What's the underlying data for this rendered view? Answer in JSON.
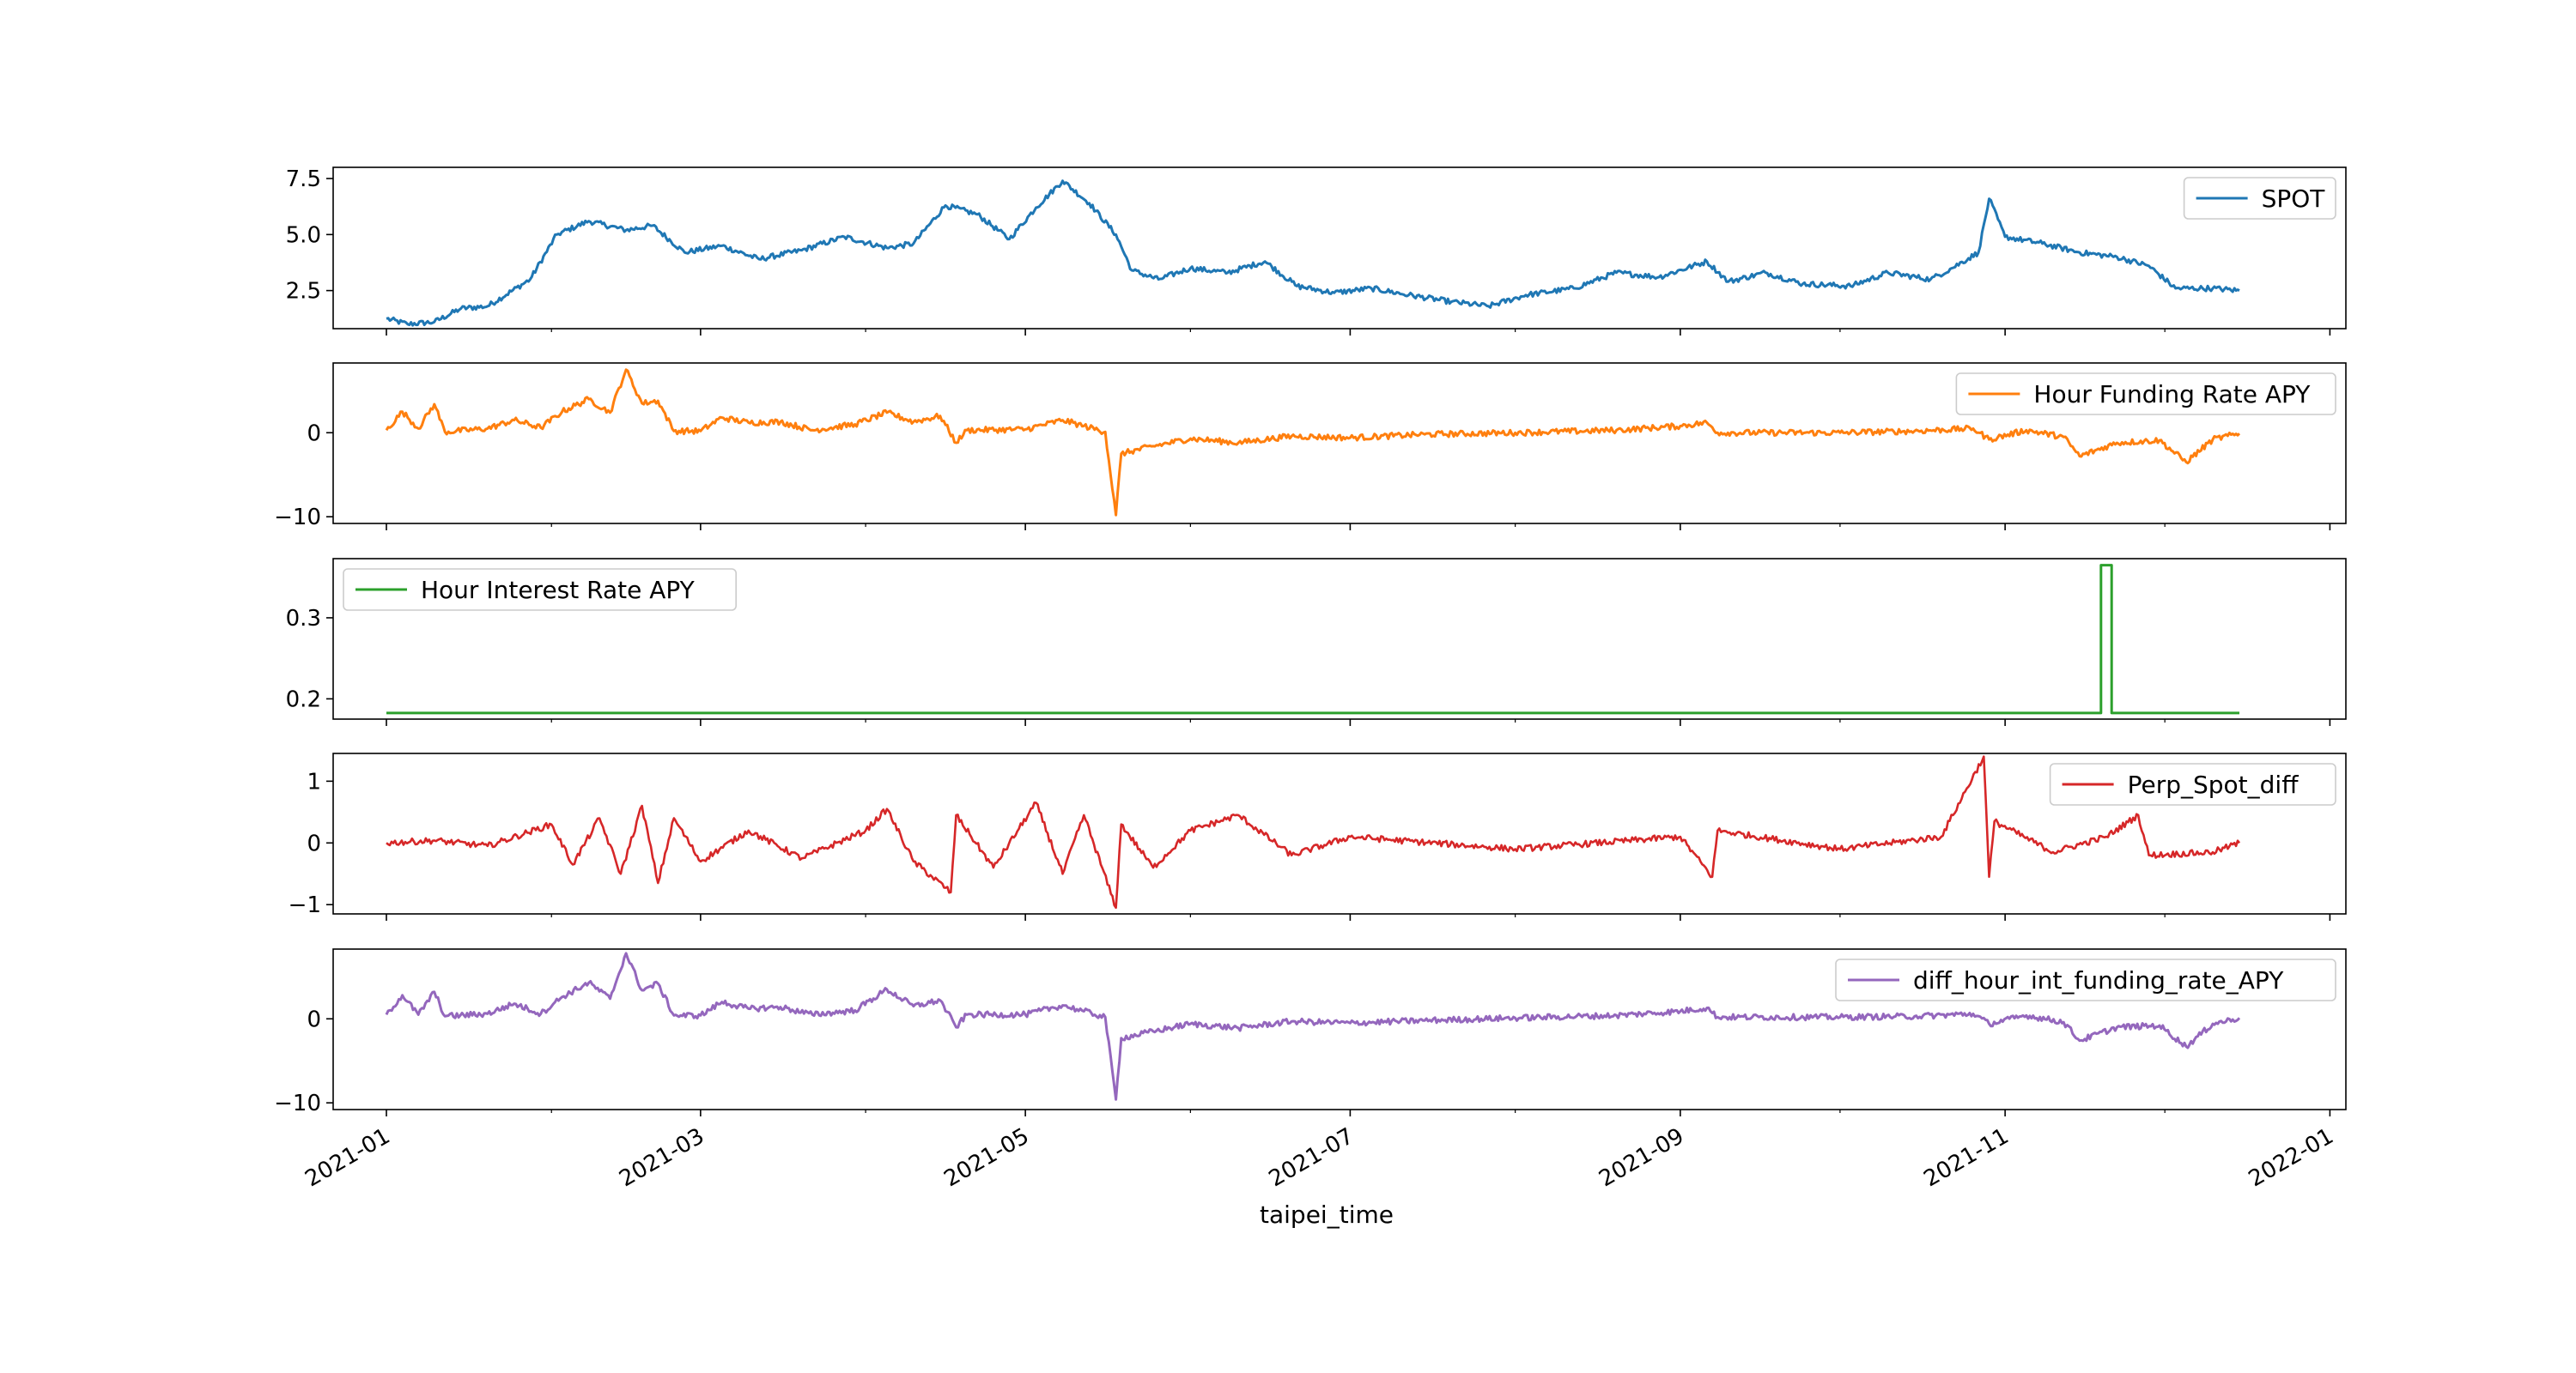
{
  "chart_data": {
    "type": "line",
    "xlabel": "taipei_time",
    "x_axis": {
      "range": [
        "2020-12-22",
        "2022-01-04"
      ],
      "tick_labels": [
        "2021-01",
        "2021-03",
        "2021-05",
        "2021-07",
        "2021-09",
        "2021-11",
        "2022-01"
      ]
    },
    "panels": [
      {
        "series_name": "SPOT",
        "color": "#1f77b4",
        "legend_position": "upper right",
        "ylim": [
          0.8,
          8.0
        ],
        "y_ticks": [
          2.5,
          5.0,
          7.5
        ],
        "y_tick_labels": [
          "2.5",
          "5.0",
          "7.5"
        ],
        "points": [
          [
            "2021-01-01",
            1.25
          ],
          [
            "2021-01-05",
            1.0
          ],
          [
            "2021-01-10",
            1.1
          ],
          [
            "2021-01-15",
            1.7
          ],
          [
            "2021-01-20",
            1.8
          ],
          [
            "2021-01-28",
            3.0
          ],
          [
            "2021-02-02",
            5.0
          ],
          [
            "2021-02-08",
            5.6
          ],
          [
            "2021-02-15",
            5.2
          ],
          [
            "2021-02-20",
            5.4
          ],
          [
            "2021-02-26",
            4.2
          ],
          [
            "2021-03-05",
            4.5
          ],
          [
            "2021-03-12",
            3.9
          ],
          [
            "2021-03-20",
            4.3
          ],
          [
            "2021-03-28",
            4.9
          ],
          [
            "2021-04-05",
            4.4
          ],
          [
            "2021-04-10",
            4.6
          ],
          [
            "2021-04-16",
            6.3
          ],
          [
            "2021-04-22",
            5.9
          ],
          [
            "2021-04-28",
            4.8
          ],
          [
            "2021-05-03",
            6.2
          ],
          [
            "2021-05-08",
            7.4
          ],
          [
            "2021-05-13",
            6.4
          ],
          [
            "2021-05-18",
            5.0
          ],
          [
            "2021-05-21",
            3.4
          ],
          [
            "2021-05-26",
            3.0
          ],
          [
            "2021-06-01",
            3.5
          ],
          [
            "2021-06-08",
            3.3
          ],
          [
            "2021-06-15",
            3.8
          ],
          [
            "2021-06-21",
            2.7
          ],
          [
            "2021-06-28",
            2.4
          ],
          [
            "2021-07-05",
            2.6
          ],
          [
            "2021-07-12",
            2.3
          ],
          [
            "2021-07-20",
            2.0
          ],
          [
            "2021-07-27",
            1.8
          ],
          [
            "2021-08-03",
            2.3
          ],
          [
            "2021-08-12",
            2.6
          ],
          [
            "2021-08-20",
            3.3
          ],
          [
            "2021-08-28",
            3.1
          ],
          [
            "2021-09-06",
            3.8
          ],
          [
            "2021-09-10",
            2.9
          ],
          [
            "2021-09-17",
            3.3
          ],
          [
            "2021-09-24",
            2.8
          ],
          [
            "2021-10-03",
            2.7
          ],
          [
            "2021-10-10",
            3.3
          ],
          [
            "2021-10-18",
            3.0
          ],
          [
            "2021-10-22",
            3.5
          ],
          [
            "2021-10-27",
            4.2
          ],
          [
            "2021-10-29",
            6.6
          ],
          [
            "2021-11-01",
            4.9
          ],
          [
            "2021-11-08",
            4.6
          ],
          [
            "2021-11-15",
            4.2
          ],
          [
            "2021-11-22",
            4.0
          ],
          [
            "2021-11-28",
            3.6
          ],
          [
            "2021-12-03",
            2.6
          ],
          [
            "2021-12-10",
            2.6
          ],
          [
            "2021-12-15",
            2.5
          ]
        ]
      },
      {
        "series_name": "Hour Funding Rate APY",
        "color": "#ff7f0e",
        "legend_position": "upper right",
        "ylim": [
          -10.8,
          8.3
        ],
        "y_ticks": [
          -10,
          0
        ],
        "y_tick_labels": [
          "−10",
          "0"
        ],
        "points": [
          [
            "2021-01-01",
            0.3
          ],
          [
            "2021-01-04",
            2.5
          ],
          [
            "2021-01-07",
            0.5
          ],
          [
            "2021-01-10",
            3.4
          ],
          [
            "2021-01-12",
            0.1
          ],
          [
            "2021-01-20",
            0.5
          ],
          [
            "2021-01-25",
            1.5
          ],
          [
            "2021-01-30",
            0.6
          ],
          [
            "2021-02-03",
            2.5
          ],
          [
            "2021-02-08",
            4.0
          ],
          [
            "2021-02-12",
            2.4
          ],
          [
            "2021-02-15",
            7.5
          ],
          [
            "2021-02-18",
            3.5
          ],
          [
            "2021-02-21",
            3.8
          ],
          [
            "2021-02-24",
            0.2
          ],
          [
            "2021-03-01",
            0.2
          ],
          [
            "2021-03-05",
            1.8
          ],
          [
            "2021-03-10",
            1.2
          ],
          [
            "2021-03-16",
            1.3
          ],
          [
            "2021-03-22",
            0.3
          ],
          [
            "2021-03-30",
            1.0
          ],
          [
            "2021-04-05",
            2.4
          ],
          [
            "2021-04-10",
            1.3
          ],
          [
            "2021-04-15",
            2.0
          ],
          [
            "2021-04-18",
            -1.2
          ],
          [
            "2021-04-20",
            0.3
          ],
          [
            "2021-05-01",
            0.4
          ],
          [
            "2021-05-08",
            1.5
          ],
          [
            "2021-05-12",
            0.8
          ],
          [
            "2021-05-16",
            0.1
          ],
          [
            "2021-05-18",
            -9.8
          ],
          [
            "2021-05-19",
            -2.5
          ],
          [
            "2021-05-25",
            -1.6
          ],
          [
            "2021-06-01",
            -0.7
          ],
          [
            "2021-06-10",
            -1.2
          ],
          [
            "2021-06-20",
            -0.4
          ],
          [
            "2021-07-01",
            -0.6
          ],
          [
            "2021-07-15",
            -0.2
          ],
          [
            "2021-08-01",
            0.0
          ],
          [
            "2021-08-20",
            0.3
          ],
          [
            "2021-09-01",
            0.8
          ],
          [
            "2021-09-06",
            1.2
          ],
          [
            "2021-09-08",
            0.0
          ],
          [
            "2021-10-01",
            0.0
          ],
          [
            "2021-10-15",
            0.2
          ],
          [
            "2021-10-26",
            0.5
          ],
          [
            "2021-10-29",
            -0.8
          ],
          [
            "2021-11-05",
            0.3
          ],
          [
            "2021-11-12",
            -0.5
          ],
          [
            "2021-11-15",
            -2.8
          ],
          [
            "2021-11-22",
            -1.2
          ],
          [
            "2021-11-30",
            -0.9
          ],
          [
            "2021-12-05",
            -3.5
          ],
          [
            "2021-12-10",
            -0.8
          ],
          [
            "2021-12-15",
            -0.1
          ]
        ]
      },
      {
        "series_name": "Hour Interest Rate APY",
        "color": "#2ca02c",
        "legend_position": "upper left",
        "ylim": [
          0.175,
          0.373
        ],
        "y_ticks": [
          0.2,
          0.3
        ],
        "y_tick_labels": [
          "0.2",
          "0.3"
        ],
        "points": [
          [
            "2021-01-01",
            0.1825
          ],
          [
            "2021-11-19",
            0.1825
          ],
          [
            "2021-11-19",
            0.365
          ],
          [
            "2021-11-21",
            0.365
          ],
          [
            "2021-11-21",
            0.1825
          ],
          [
            "2021-12-15",
            0.1825
          ]
        ]
      },
      {
        "series_name": "Perp_Spot_diff",
        "color": "#d62728",
        "legend_position": "upper right",
        "ylim": [
          -1.15,
          1.45
        ],
        "y_ticks": [
          -1,
          0,
          1
        ],
        "y_tick_labels": [
          "−1",
          "0",
          "1"
        ],
        "points": [
          [
            "2021-01-01",
            0.0
          ],
          [
            "2021-01-10",
            0.04
          ],
          [
            "2021-01-20",
            -0.05
          ],
          [
            "2021-02-01",
            0.3
          ],
          [
            "2021-02-05",
            -0.35
          ],
          [
            "2021-02-10",
            0.4
          ],
          [
            "2021-02-14",
            -0.5
          ],
          [
            "2021-02-18",
            0.6
          ],
          [
            "2021-02-21",
            -0.65
          ],
          [
            "2021-02-24",
            0.4
          ],
          [
            "2021-03-01",
            -0.3
          ],
          [
            "2021-03-10",
            0.2
          ],
          [
            "2021-03-20",
            -0.25
          ],
          [
            "2021-04-01",
            0.2
          ],
          [
            "2021-04-05",
            0.55
          ],
          [
            "2021-04-10",
            -0.3
          ],
          [
            "2021-04-17",
            -0.8
          ],
          [
            "2021-04-18",
            0.45
          ],
          [
            "2021-04-25",
            -0.4
          ],
          [
            "2021-05-03",
            0.65
          ],
          [
            "2021-05-08",
            -0.5
          ],
          [
            "2021-05-12",
            0.45
          ],
          [
            "2021-05-18",
            -1.05
          ],
          [
            "2021-05-19",
            0.3
          ],
          [
            "2021-05-25",
            -0.4
          ],
          [
            "2021-06-01",
            0.2
          ],
          [
            "2021-06-10",
            0.45
          ],
          [
            "2021-06-20",
            -0.2
          ],
          [
            "2021-07-01",
            0.1
          ],
          [
            "2021-08-01",
            -0.1
          ],
          [
            "2021-09-01",
            0.1
          ],
          [
            "2021-09-07",
            -0.55
          ],
          [
            "2021-09-08",
            0.2
          ],
          [
            "2021-10-01",
            -0.1
          ],
          [
            "2021-10-20",
            0.1
          ],
          [
            "2021-10-28",
            1.4
          ],
          [
            "2021-10-29",
            -0.55
          ],
          [
            "2021-10-30",
            0.35
          ],
          [
            "2021-11-10",
            -0.15
          ],
          [
            "2021-11-20",
            0.1
          ],
          [
            "2021-11-26",
            0.45
          ],
          [
            "2021-11-28",
            -0.2
          ],
          [
            "2021-12-10",
            -0.15
          ],
          [
            "2021-12-15",
            0.0
          ]
        ]
      },
      {
        "series_name": "diff_hour_int_funding_rate_APY",
        "color": "#9467bd",
        "legend_position": "upper right",
        "ylim": [
          -10.8,
          8.3
        ],
        "y_ticks": [
          -10,
          0
        ],
        "y_tick_labels": [
          "−10",
          "0"
        ],
        "points": [
          [
            "2021-01-01",
            0.5
          ],
          [
            "2021-01-04",
            2.8
          ],
          [
            "2021-01-07",
            0.5
          ],
          [
            "2021-01-10",
            3.2
          ],
          [
            "2021-01-12",
            0.3
          ],
          [
            "2021-01-20",
            0.6
          ],
          [
            "2021-01-25",
            1.8
          ],
          [
            "2021-01-30",
            0.6
          ],
          [
            "2021-02-03",
            2.6
          ],
          [
            "2021-02-08",
            4.3
          ],
          [
            "2021-02-12",
            2.4
          ],
          [
            "2021-02-15",
            7.8
          ],
          [
            "2021-02-18",
            3.4
          ],
          [
            "2021-02-21",
            4.2
          ],
          [
            "2021-02-24",
            0.4
          ],
          [
            "2021-03-01",
            0.4
          ],
          [
            "2021-03-05",
            2.0
          ],
          [
            "2021-03-10",
            1.2
          ],
          [
            "2021-03-16",
            1.4
          ],
          [
            "2021-03-22",
            0.5
          ],
          [
            "2021-03-30",
            1.0
          ],
          [
            "2021-04-05",
            3.5
          ],
          [
            "2021-04-10",
            1.5
          ],
          [
            "2021-04-15",
            2.2
          ],
          [
            "2021-04-18",
            -1.0
          ],
          [
            "2021-04-20",
            0.5
          ],
          [
            "2021-05-01",
            0.5
          ],
          [
            "2021-05-08",
            1.6
          ],
          [
            "2021-05-12",
            0.9
          ],
          [
            "2021-05-16",
            0.2
          ],
          [
            "2021-05-18",
            -9.6
          ],
          [
            "2021-05-19",
            -2.3
          ],
          [
            "2021-05-25",
            -1.5
          ],
          [
            "2021-06-01",
            -0.6
          ],
          [
            "2021-06-10",
            -1.1
          ],
          [
            "2021-06-20",
            -0.3
          ],
          [
            "2021-07-01",
            -0.5
          ],
          [
            "2021-07-15",
            -0.2
          ],
          [
            "2021-08-01",
            0.1
          ],
          [
            "2021-08-20",
            0.4
          ],
          [
            "2021-09-01",
            0.9
          ],
          [
            "2021-09-06",
            1.3
          ],
          [
            "2021-09-08",
            0.2
          ],
          [
            "2021-10-01",
            0.2
          ],
          [
            "2021-10-15",
            0.3
          ],
          [
            "2021-10-26",
            0.6
          ],
          [
            "2021-10-29",
            -0.6
          ],
          [
            "2021-11-05",
            0.4
          ],
          [
            "2021-11-12",
            -0.4
          ],
          [
            "2021-11-15",
            -2.6
          ],
          [
            "2021-11-22",
            -1.0
          ],
          [
            "2021-11-30",
            -0.8
          ],
          [
            "2021-12-05",
            -3.3
          ],
          [
            "2021-12-10",
            -0.6
          ],
          [
            "2021-12-15",
            0.1
          ]
        ]
      }
    ]
  }
}
